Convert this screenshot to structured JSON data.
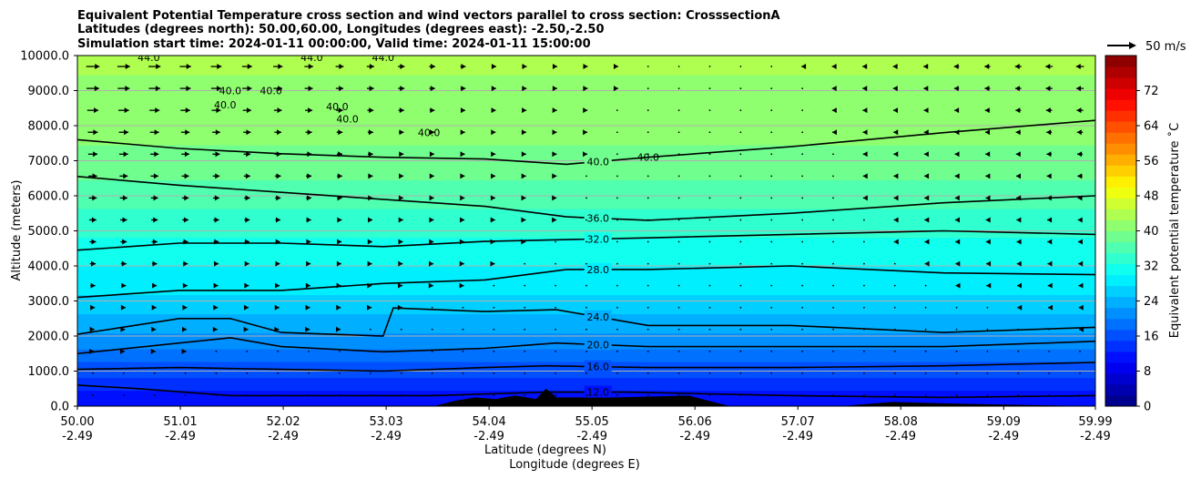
{
  "chart_data": {
    "type": "heatmap",
    "title_lines": [
      "Equivalent Potential Temperature cross section and wind vectors parallel to cross section: CrosssectionA",
      "Latitudes (degrees north): 50.00,60.00, Longitudes (degrees east): -2.50,-2.50",
      "Simulation start time: 2024-01-11 00:00:00, Valid time: 2024-01-11 15:00:00"
    ],
    "xlabel": "Latitude (degrees N)",
    "xlabel2": "Longitude (degrees E)",
    "ylabel": "Altitude (meters)",
    "xlim": [
      50.0,
      59.99
    ],
    "ylim": [
      0,
      10000
    ],
    "x_ticks": [
      50.0,
      51.01,
      52.02,
      53.03,
      54.04,
      55.05,
      56.06,
      57.07,
      58.08,
      59.09,
      59.99
    ],
    "x_tick_labels": [
      "50.00",
      "51.01",
      "52.02",
      "53.03",
      "54.04",
      "55.05",
      "56.06",
      "57.07",
      "58.08",
      "59.09",
      "59.99"
    ],
    "x_tick_labels2": [
      "-2.49",
      "-2.49",
      "-2.49",
      "-2.49",
      "-2.49",
      "-2.49",
      "-2.49",
      "-2.49",
      "-2.49",
      "-2.49",
      "-2.49"
    ],
    "y_ticks": [
      0,
      1000,
      2000,
      3000,
      4000,
      5000,
      6000,
      7000,
      8000,
      9000,
      10000
    ],
    "y_tick_labels": [
      "0.0",
      "1000.0",
      "2000.0",
      "3000.0",
      "4000.0",
      "5000.0",
      "6000.0",
      "7000.0",
      "8000.0",
      "9000.0",
      "10000.0"
    ],
    "grid": "horizontal",
    "colorbar": {
      "label": "Equivalent potential temperature ˚C",
      "range": [
        0,
        80
      ],
      "ticks": [
        0,
        8,
        16,
        24,
        32,
        40,
        48,
        56,
        64,
        72
      ],
      "tick_labels": [
        "0",
        "8",
        "16",
        "24",
        "32",
        "40",
        "48",
        "56",
        "64",
        "72"
      ],
      "colormap": "jet"
    },
    "quiver_key": {
      "label": "50 m/s",
      "speed": 50
    },
    "contours": [
      {
        "level": 12,
        "label": "12.0",
        "points": [
          [
            50.0,
            600
          ],
          [
            50.6,
            500
          ],
          [
            51.5,
            300
          ],
          [
            52.5,
            300
          ],
          [
            53.5,
            300
          ],
          [
            54.6,
            400
          ],
          [
            55.4,
            400
          ],
          [
            57.0,
            300
          ],
          [
            58.5,
            250
          ],
          [
            59.99,
            300
          ]
        ]
      },
      {
        "level": 16,
        "label": "16.0",
        "points": [
          [
            50.0,
            1050
          ],
          [
            51.0,
            1100
          ],
          [
            52.0,
            1050
          ],
          [
            53.0,
            1000
          ],
          [
            54.0,
            1100
          ],
          [
            54.6,
            1150
          ],
          [
            55.6,
            1100
          ],
          [
            57.0,
            1100
          ],
          [
            58.5,
            1150
          ],
          [
            59.99,
            1250
          ]
        ]
      },
      {
        "level": 20,
        "label": "20.0",
        "points": [
          [
            50.0,
            1500
          ],
          [
            51.0,
            1800
          ],
          [
            51.5,
            1950
          ],
          [
            52.0,
            1700
          ],
          [
            53.0,
            1550
          ],
          [
            54.0,
            1650
          ],
          [
            54.7,
            1800
          ],
          [
            55.6,
            1700
          ],
          [
            57.0,
            1700
          ],
          [
            58.5,
            1700
          ],
          [
            59.99,
            1850
          ]
        ]
      },
      {
        "level": 24,
        "label": "24.0",
        "points": [
          [
            50.0,
            2050
          ],
          [
            51.0,
            2500
          ],
          [
            51.5,
            2500
          ],
          [
            52.0,
            2100
          ],
          [
            53.0,
            2000
          ],
          [
            53.1,
            2800
          ],
          [
            54.0,
            2700
          ],
          [
            54.7,
            2750
          ],
          [
            55.6,
            2300
          ],
          [
            57.0,
            2300
          ],
          [
            58.5,
            2100
          ],
          [
            59.99,
            2250
          ]
        ]
      },
      {
        "level": 28,
        "label": "28.0",
        "points": [
          [
            50.0,
            3100
          ],
          [
            51.0,
            3300
          ],
          [
            52.0,
            3300
          ],
          [
            53.0,
            3500
          ],
          [
            54.0,
            3600
          ],
          [
            54.8,
            3900
          ],
          [
            55.6,
            3900
          ],
          [
            57.0,
            4000
          ],
          [
            58.5,
            3800
          ],
          [
            59.99,
            3750
          ]
        ]
      },
      {
        "level": 32,
        "label": "32.0",
        "points": [
          [
            50.0,
            4450
          ],
          [
            51.0,
            4650
          ],
          [
            52.0,
            4650
          ],
          [
            53.0,
            4550
          ],
          [
            54.0,
            4700
          ],
          [
            55.6,
            4800
          ],
          [
            57.0,
            4900
          ],
          [
            58.5,
            5000
          ],
          [
            59.99,
            4900
          ]
        ]
      },
      {
        "level": 36,
        "label": "36.0",
        "points": [
          [
            50.0,
            6550
          ],
          [
            51.0,
            6300
          ],
          [
            52.0,
            6100
          ],
          [
            53.0,
            5900
          ],
          [
            54.0,
            5700
          ],
          [
            54.8,
            5400
          ],
          [
            55.6,
            5300
          ],
          [
            57.0,
            5500
          ],
          [
            58.5,
            5800
          ],
          [
            59.99,
            6000
          ]
        ]
      },
      {
        "level": 40,
        "label": "40.0",
        "points": [
          [
            50.0,
            7600
          ],
          [
            51.0,
            7350
          ],
          [
            52.0,
            7200
          ],
          [
            53.0,
            7100
          ],
          [
            54.0,
            7050
          ],
          [
            54.8,
            6900
          ],
          [
            55.6,
            7100
          ],
          [
            57.0,
            7400
          ],
          [
            58.5,
            7800
          ],
          [
            59.99,
            8150
          ]
        ]
      }
    ],
    "contour_labels_40": [
      "40.0",
      "40.0",
      "40.0",
      "40.0",
      "40.0",
      "40.0",
      "40.0"
    ],
    "contour_labels_44": [
      "44.0",
      "44.0",
      "44.0"
    ],
    "theta_profile": [
      [
        0,
        10
      ],
      [
        500,
        13
      ],
      [
        1000,
        16
      ],
      [
        1500,
        19
      ],
      [
        2000,
        22
      ],
      [
        3000,
        27
      ],
      [
        4000,
        30
      ],
      [
        5000,
        33
      ],
      [
        6000,
        36
      ],
      [
        7000,
        39
      ],
      [
        8000,
        41
      ],
      [
        9000,
        42
      ],
      [
        10000,
        43
      ]
    ],
    "wind_profile": [
      [
        0,
        0
      ],
      [
        2000,
        5
      ],
      [
        4000,
        10
      ],
      [
        6000,
        14
      ],
      [
        8000,
        18
      ],
      [
        9000,
        22
      ],
      [
        10000,
        24
      ]
    ],
    "terrain": [
      [
        53.5,
        0
      ],
      [
        53.7,
        150
      ],
      [
        53.9,
        250
      ],
      [
        54.1,
        200
      ],
      [
        54.3,
        300
      ],
      [
        54.5,
        200
      ],
      [
        54.6,
        500
      ],
      [
        54.7,
        250
      ],
      [
        55.3,
        250
      ],
      [
        56.0,
        300
      ],
      [
        56.4,
        0
      ],
      [
        57.5,
        0
      ],
      [
        58.0,
        120
      ],
      [
        58.5,
        80
      ],
      [
        59.0,
        50
      ],
      [
        59.99,
        0
      ]
    ]
  },
  "colors": {
    "grid": "#b0b0b0",
    "terrain": "#000000",
    "contour": "#000000"
  }
}
